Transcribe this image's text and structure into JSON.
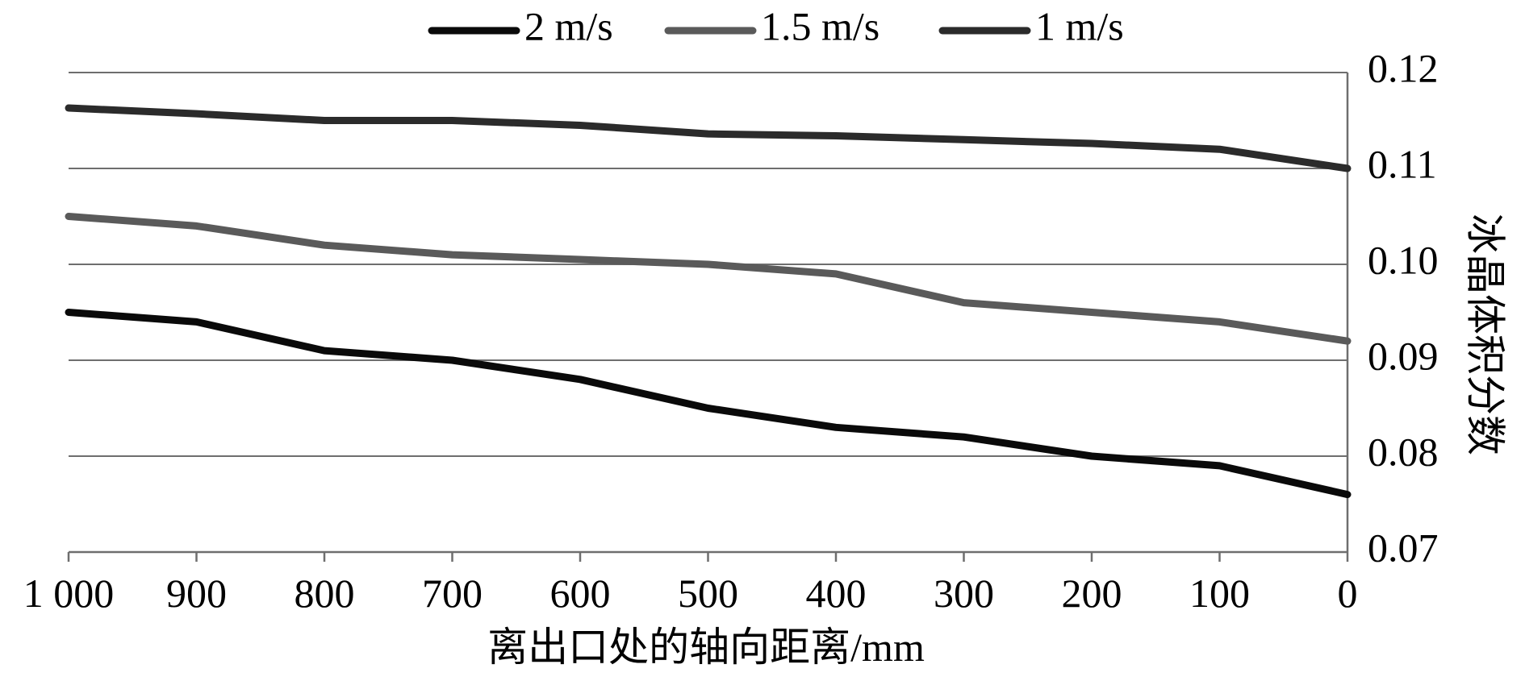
{
  "chart_data": {
    "type": "line",
    "title": "",
    "xlabel": "离出口处的轴向距离/mm",
    "ylabel": "冰晶体积分数",
    "x": [
      1000,
      900,
      800,
      700,
      600,
      500,
      400,
      300,
      200,
      100,
      0
    ],
    "x_reversed": true,
    "x_tick_labels": [
      "1 000",
      "900",
      "800",
      "700",
      "600",
      "500",
      "400",
      "300",
      "200",
      "100",
      "0"
    ],
    "y_ticks": [
      0.07,
      0.08,
      0.09,
      0.1,
      0.11,
      0.12
    ],
    "y_tick_labels": [
      "0.07",
      "0.08",
      "0.09",
      "0.10",
      "0.11",
      "0.12"
    ],
    "xlim": [
      1000,
      0
    ],
    "ylim": [
      0.07,
      0.12
    ],
    "y_axis_side": "right",
    "grid": "horizontal",
    "legend_position": "top-center",
    "series": [
      {
        "name": "2 m/s",
        "color": "#0a0a0a",
        "values": [
          0.095,
          0.094,
          0.091,
          0.09,
          0.088,
          0.085,
          0.083,
          0.082,
          0.08,
          0.079,
          0.076
        ]
      },
      {
        "name": "1.5 m/s",
        "color": "#5a5a5a",
        "values": [
          0.105,
          0.104,
          0.102,
          0.101,
          0.1005,
          0.1,
          0.099,
          0.096,
          0.095,
          0.094,
          0.092
        ]
      },
      {
        "name": "1 m/s",
        "color": "#2b2b2b",
        "values": [
          0.1163,
          0.1157,
          0.115,
          0.115,
          0.1145,
          0.1136,
          0.1134,
          0.113,
          0.1126,
          0.112,
          0.11
        ]
      }
    ]
  }
}
